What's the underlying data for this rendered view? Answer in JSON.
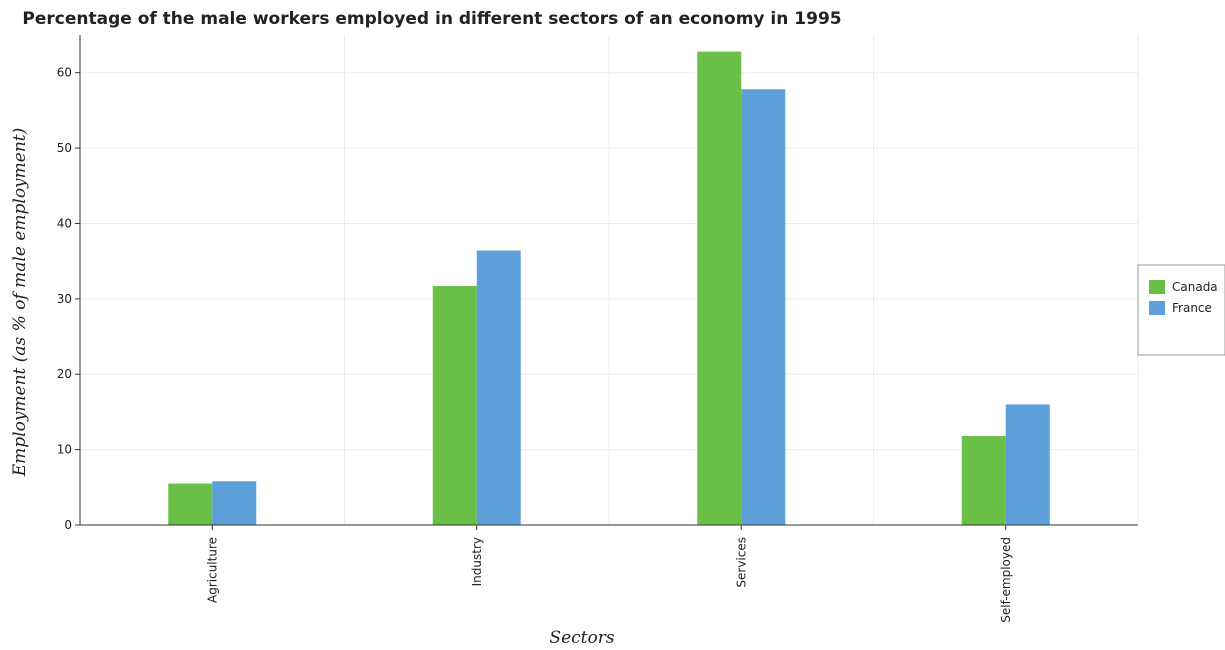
{
  "chart_data": {
    "type": "bar",
    "title": "Percentage of the male workers employed in different sectors of an economy in 1995",
    "xlabel": "Sectors",
    "ylabel": "Employment (as % of male employment)",
    "categories": [
      "Agriculture",
      "Industry",
      "Services",
      "Self-employed"
    ],
    "series": [
      {
        "name": "Canada",
        "color": "#6abf47",
        "values": [
          5.5,
          31.7,
          62.8,
          11.8
        ]
      },
      {
        "name": "France",
        "color": "#5c9fd9",
        "values": [
          5.8,
          36.4,
          57.8,
          16.0
        ]
      }
    ],
    "ylim": [
      0,
      65
    ],
    "yticks": [
      0,
      10,
      20,
      30,
      40,
      50,
      60
    ],
    "grid": true,
    "legend_position": "right"
  }
}
